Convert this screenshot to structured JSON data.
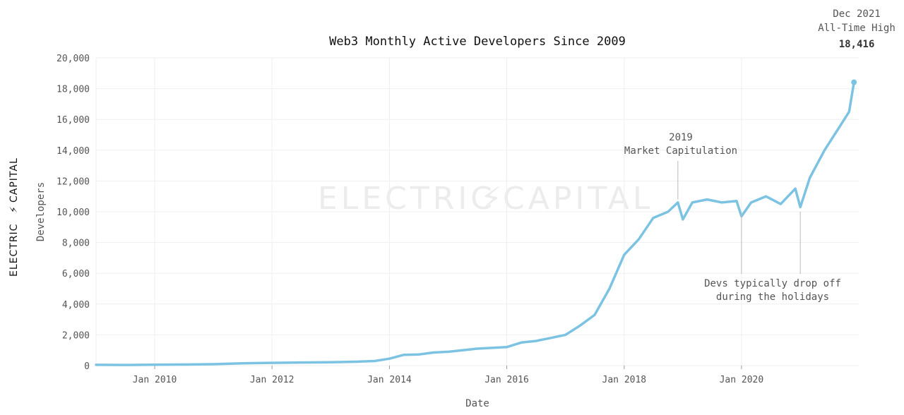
{
  "brand": {
    "left_text": "ELECTRIC",
    "right_text": "CAPITAL",
    "bolt": "⚡",
    "watermark_left": "ELECTRIC",
    "watermark_right": "CAPITAL"
  },
  "colors": {
    "line": "#7cc3e3",
    "grid": "#efefef",
    "text": "#555555"
  },
  "chart_data": {
    "type": "line",
    "title": "Web3 Monthly Active Developers Since 2009",
    "xlabel": "Date",
    "ylabel": "Developers",
    "xlim": [
      "2009-01-01",
      "2021-12-31"
    ],
    "ylim": [
      0,
      20000
    ],
    "x_ticks": [
      "Jan 2010",
      "Jan 2012",
      "Jan 2014",
      "Jan 2016",
      "Jan 2018",
      "Jan 2020"
    ],
    "y_ticks": [
      "0",
      "2,000",
      "4,000",
      "6,000",
      "8,000",
      "10,000",
      "12,000",
      "14,000",
      "16,000",
      "18,000",
      "20,000"
    ],
    "grid": true,
    "legend": "none",
    "series": [
      {
        "x": [
          "2009-01",
          "2009-07",
          "2010-01",
          "2010-07",
          "2011-01",
          "2011-07",
          "2012-01",
          "2012-07",
          "2013-01",
          "2013-07",
          "2013-10",
          "2014-01",
          "2014-04",
          "2014-07",
          "2014-10",
          "2015-01",
          "2015-04",
          "2015-07",
          "2015-10",
          "2016-01",
          "2016-04",
          "2016-07",
          "2016-10",
          "2017-01",
          "2017-04",
          "2017-07",
          "2017-10",
          "2018-01",
          "2018-04",
          "2018-07",
          "2018-10",
          "2018-12",
          "2019-01",
          "2019-03",
          "2019-06",
          "2019-09",
          "2019-12",
          "2020-01",
          "2020-03",
          "2020-06",
          "2020-09",
          "2020-12",
          "2021-01",
          "2021-03",
          "2021-06",
          "2021-09",
          "2021-11",
          "2021-12"
        ],
        "y": [
          50,
          40,
          60,
          70,
          90,
          150,
          180,
          200,
          220,
          260,
          300,
          450,
          700,
          720,
          850,
          900,
          1000,
          1100,
          1150,
          1200,
          1500,
          1600,
          1800,
          2000,
          2600,
          3300,
          5000,
          7200,
          8200,
          9600,
          10000,
          10600,
          9500,
          10600,
          10800,
          10600,
          10700,
          9700,
          10600,
          11000,
          10500,
          11500,
          10300,
          12200,
          14000,
          15500,
          16500,
          18416
        ]
      }
    ],
    "annotations": [
      {
        "lines": [
          "2019",
          "Market Capitulation"
        ]
      },
      {
        "lines": [
          "Devs typically drop off",
          "during the holidays"
        ]
      },
      {
        "lines": [
          "Dec 2021",
          "All-Time High"
        ],
        "value": "18,416"
      }
    ]
  }
}
